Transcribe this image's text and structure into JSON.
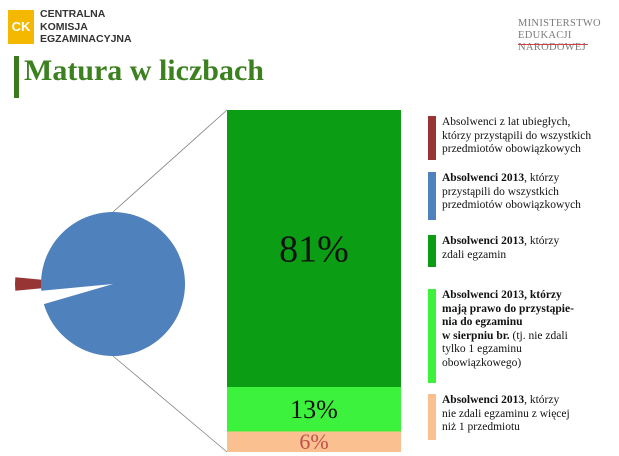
{
  "header": {
    "logo_left_mark": "CK",
    "logo_left_name": "CENTRALNA\nKOMISJA\nEGZAMINACYJNA",
    "logo_right_name": "MINISTERSTWO\nEDUKACJI\nNARODOWEJ",
    "title": "Matura w liczbach"
  },
  "chart_data": [
    {
      "type": "pie",
      "title": "",
      "slices": [
        {
          "label": "Absolwenci z lat ubiegłych, którzy przystąpili do wszystkich przedmiotów obowiązkowych",
          "value": 3,
          "color": "#963534"
        },
        {
          "label": "Absolwenci 2013, którzy przystąpili do wszystkich przedmiotów obowiązkowych",
          "value": 97,
          "color": "#4f81bd"
        }
      ]
    },
    {
      "type": "bar",
      "stacked": true,
      "title": "",
      "segments": [
        {
          "label": "Absolwenci 2013, którzy zdali egzamin",
          "value": 81,
          "value_label": "81%",
          "color": "#0b9e14"
        },
        {
          "label": "Absolwenci 2013, którzy mają prawo do przystąpienia do egzaminu w sierpniu br.",
          "value": 13,
          "value_label": "13%",
          "color": "#3cf23c"
        },
        {
          "label": "Absolwenci 2013, którzy nie zdali egzaminu z więcej niż 1 przedmiotu",
          "value": 6,
          "value_label": "6%",
          "color": "#fac090"
        }
      ]
    }
  ],
  "legend": [
    {
      "color": "#963534",
      "bold": "",
      "text": "Absolwenci z lat ubiegłych,\nktórzy przystąpili do wszystkich\nprzedmiotów obowiązkowych"
    },
    {
      "color": "#4f81bd",
      "bold": "Absolwenci 2013",
      "text": ", którzy\nprzystąpili do wszystkich\nprzedmiotów obowiązkowych"
    },
    {
      "color": "#0b9e14",
      "bold": "Absolwenci 2013",
      "text": ", którzy\nzdali egzamin"
    },
    {
      "color": "#3cf23c",
      "bold": "Absolwenci 2013, którzy\nmają prawo do przystąpie-\nnia do egzaminu\nw sierpniu br.",
      "text": " (tj. nie zdali\ntylko 1 egzaminu\nobowiązkowego)"
    },
    {
      "color": "#fac090",
      "bold": "Absolwenci 2013",
      "text": ", którzy\nnie zdali egzaminu z więcej\nniż 1 przedmiotu"
    }
  ]
}
